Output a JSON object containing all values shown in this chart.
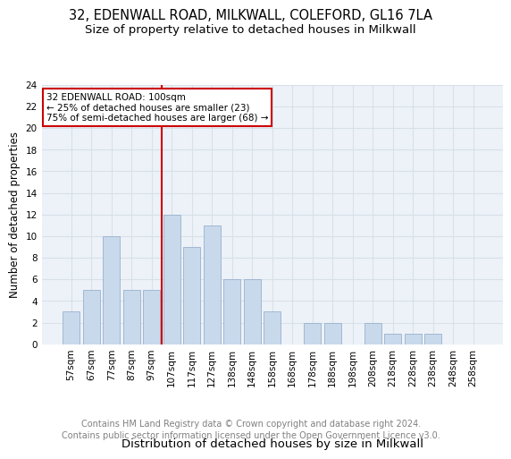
{
  "title_line1": "32, EDENWALL ROAD, MILKWALL, COLEFORD, GL16 7LA",
  "title_line2": "Size of property relative to detached houses in Milkwall",
  "xlabel": "Distribution of detached houses by size in Milkwall",
  "ylabel": "Number of detached properties",
  "bar_labels": [
    "57sqm",
    "67sqm",
    "77sqm",
    "87sqm",
    "97sqm",
    "107sqm",
    "117sqm",
    "127sqm",
    "138sqm",
    "148sqm",
    "158sqm",
    "168sqm",
    "178sqm",
    "188sqm",
    "198sqm",
    "208sqm",
    "218sqm",
    "228sqm",
    "238sqm",
    "248sqm",
    "258sqm"
  ],
  "bar_values": [
    3,
    5,
    10,
    5,
    5,
    12,
    9,
    11,
    6,
    6,
    3,
    0,
    2,
    2,
    0,
    2,
    1,
    1,
    1,
    0,
    0
  ],
  "bar_color": "#c8d9ec",
  "bar_edgecolor": "#9ab0cc",
  "vline_x": 4.5,
  "vline_color": "#cc0000",
  "annotation_text": "32 EDENWALL ROAD: 100sqm\n← 25% of detached houses are smaller (23)\n75% of semi-detached houses are larger (68) →",
  "annotation_box_color": "white",
  "annotation_box_edgecolor": "#cc0000",
  "ylim": [
    0,
    24
  ],
  "yticks": [
    0,
    2,
    4,
    6,
    8,
    10,
    12,
    14,
    16,
    18,
    20,
    22,
    24
  ],
  "grid_color": "#d8e0e8",
  "background_color": "#edf2f8",
  "footer_text": "Contains HM Land Registry data © Crown copyright and database right 2024.\nContains public sector information licensed under the Open Government Licence v3.0.",
  "title_fontsize": 10.5,
  "subtitle_fontsize": 9.5,
  "xlabel_fontsize": 9.5,
  "ylabel_fontsize": 8.5,
  "tick_fontsize": 7.5,
  "annotation_fontsize": 7.5,
  "footer_fontsize": 7.0
}
